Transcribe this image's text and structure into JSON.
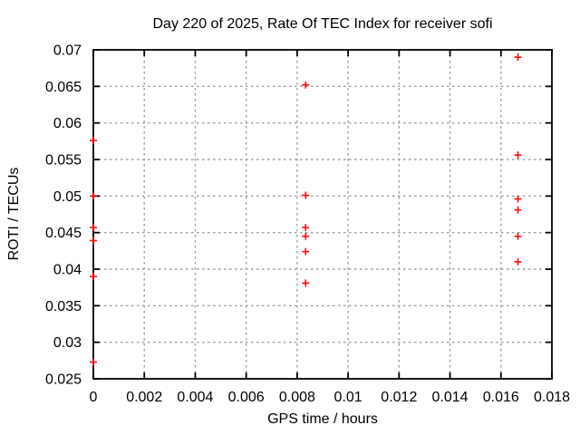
{
  "chart_data": {
    "type": "scatter",
    "title": "Day 220 of 2025, Rate Of TEC Index for receiver sofi",
    "xlabel": "GPS time / hours",
    "ylabel": "ROTI / TECUs",
    "xlim": [
      0,
      0.018
    ],
    "ylim": [
      0.025,
      0.07
    ],
    "xticks": [
      0,
      0.002,
      0.004,
      0.006,
      0.008,
      0.01,
      0.012,
      0.014,
      0.016,
      0.018
    ],
    "yticks": [
      0.025,
      0.03,
      0.035,
      0.04,
      0.045,
      0.05,
      0.055,
      0.06,
      0.065,
      0.07
    ],
    "grid": true,
    "legend": "none",
    "marker": {
      "shape": "plus",
      "color": "#ff0000",
      "size": 8
    },
    "colors": {
      "background": "#ffffff",
      "border": "#000000",
      "grid": "#a0a0a0",
      "text": "#000000"
    },
    "series": [
      {
        "name": "ROTI",
        "points": [
          [
            0,
            0.0576
          ],
          [
            0,
            0.05
          ],
          [
            0,
            0.0457
          ],
          [
            0,
            0.0439
          ],
          [
            0,
            0.039
          ],
          [
            0,
            0.0273
          ],
          [
            0.008333,
            0.0652
          ],
          [
            0.008333,
            0.0501
          ],
          [
            0.008333,
            0.0457
          ],
          [
            0.008333,
            0.0445
          ],
          [
            0.008333,
            0.0424
          ],
          [
            0.008333,
            0.0381
          ],
          [
            0.016667,
            0.069
          ],
          [
            0.016667,
            0.0556
          ],
          [
            0.016667,
            0.0496
          ],
          [
            0.016667,
            0.0481
          ],
          [
            0.016667,
            0.0445
          ],
          [
            0.016667,
            0.041
          ]
        ]
      }
    ]
  }
}
